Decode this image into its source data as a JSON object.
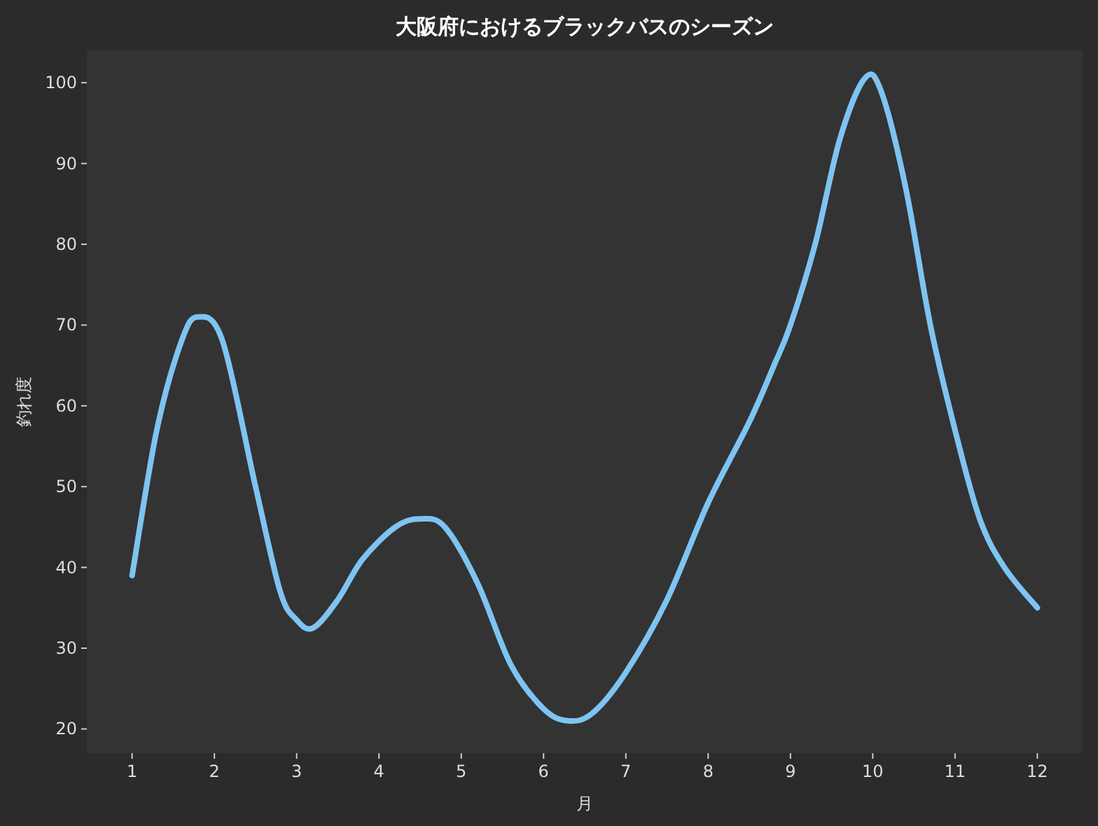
{
  "chart_data": {
    "type": "line",
    "title": "大阪府におけるブラックバスのシーズン",
    "xlabel": "月",
    "ylabel": "釣れ度",
    "series": [
      {
        "color": "#7ec4f2",
        "x": [
          1,
          1.3,
          1.6,
          1.8,
          2.1,
          2.5,
          2.8,
          3.0,
          3.2,
          3.5,
          3.8,
          4.2,
          4.5,
          4.8,
          5.2,
          5.6,
          6.0,
          6.3,
          6.6,
          7.0,
          7.5,
          8.0,
          8.5,
          8.8,
          9.0,
          9.3,
          9.6,
          9.9,
          10.1,
          10.4,
          10.7,
          11.0,
          11.3,
          11.6,
          12
        ],
        "values": [
          39,
          57,
          68,
          71,
          68,
          50,
          37,
          33.5,
          32.5,
          36,
          41,
          45,
          46,
          45,
          38,
          28,
          22.5,
          21,
          22,
          27,
          36,
          48,
          58,
          65,
          70,
          80,
          93,
          100.5,
          99,
          87,
          70,
          57,
          46,
          40,
          35
        ]
      }
    ],
    "xlim": [
      0.45,
      12.55
    ],
    "xticks": [
      1,
      2,
      3,
      4,
      5,
      6,
      7,
      8,
      9,
      10,
      11,
      12
    ],
    "ylim": [
      17,
      104
    ],
    "yticks": [
      20,
      30,
      40,
      50,
      60,
      70,
      80,
      90,
      100
    ],
    "grid": false,
    "marker": "none",
    "line_style": "solid"
  }
}
